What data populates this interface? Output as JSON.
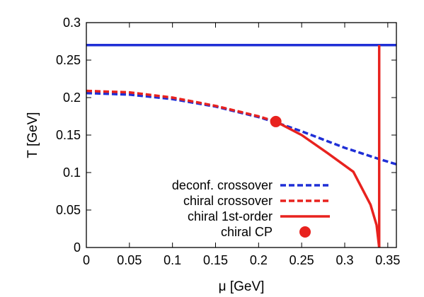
{
  "chart_data": {
    "type": "line",
    "xlabel": "μ [GeV]",
    "ylabel": "T [GeV]",
    "xlim": [
      0,
      0.36
    ],
    "ylim": [
      0,
      0.3
    ],
    "x_ticks": [
      "0",
      "0.05",
      "0.1",
      "0.15",
      "0.2",
      "0.25",
      "0.3",
      "0.35"
    ],
    "y_ticks": [
      "0",
      "0.05",
      "0.1",
      "0.15",
      "0.2",
      "0.25",
      "0.3"
    ],
    "grid": false,
    "legend_position": "bottom-right",
    "series": [
      {
        "name": "deconf. crossover",
        "style": "dashed",
        "color": "#1f2fd6",
        "x": [
          0,
          0.05,
          0.1,
          0.15,
          0.2,
          0.22,
          0.25,
          0.3,
          0.34,
          0.36
        ],
        "y": [
          0.206,
          0.204,
          0.198,
          0.188,
          0.174,
          0.167,
          0.155,
          0.133,
          0.118,
          0.111
        ]
      },
      {
        "name": "chiral crossover",
        "style": "dashed",
        "color": "#e8221e",
        "x": [
          0,
          0.05,
          0.1,
          0.15,
          0.2,
          0.22
        ],
        "y": [
          0.209,
          0.207,
          0.2,
          0.189,
          0.175,
          0.168
        ]
      },
      {
        "name": "chiral 1st-order",
        "style": "solid",
        "color": "#e8221e",
        "x": [
          0.22,
          0.25,
          0.28,
          0.31,
          0.33,
          0.337,
          0.34
        ],
        "y": [
          0.168,
          0.15,
          0.126,
          0.101,
          0.057,
          0.03,
          0.0
        ]
      },
      {
        "name": "",
        "style": "solid",
        "color": "#1f2fd6",
        "x": [
          0,
          0.36
        ],
        "y": [
          0.27,
          0.27
        ]
      },
      {
        "name": "",
        "style": "solid",
        "color": "#e8221e",
        "x": [
          0.34,
          0.34
        ],
        "y": [
          0.27,
          0.0
        ]
      }
    ],
    "points": [
      {
        "name": "chiral CP",
        "color": "#e8221e",
        "x": 0.22,
        "y": 0.168
      }
    ]
  }
}
